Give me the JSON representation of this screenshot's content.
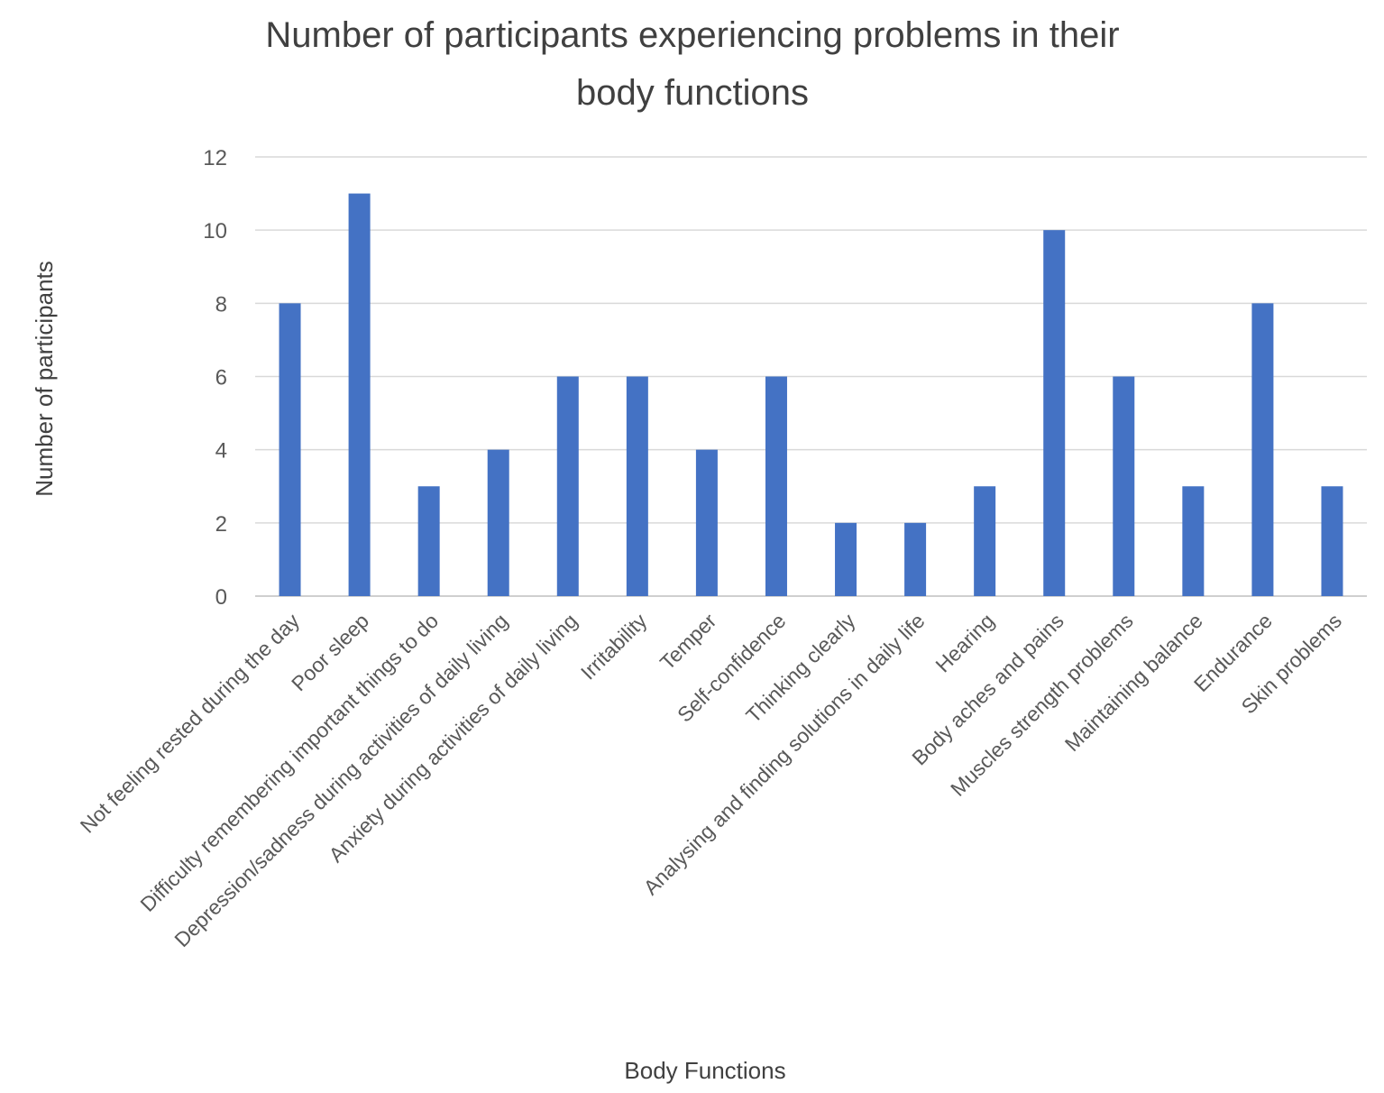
{
  "chart_data": {
    "type": "bar",
    "title": "Number of participants experiencing problems in their body functions",
    "title_lines": [
      "Number of participants experiencing problems in their",
      "body functions"
    ],
    "xlabel": "Body Functions",
    "ylabel": "Number of participants",
    "ylim": [
      0,
      12
    ],
    "yticks": [
      0,
      2,
      4,
      6,
      8,
      10,
      12
    ],
    "grid": true,
    "bar_color": "#4472C4",
    "categories": [
      "Not feeling rested during the day",
      "Poor sleep",
      "Difficulty remembering important things to do",
      "Depression/sadness during activities of daily living",
      "Anxiety during activities of daily living",
      "Irritability",
      "Temper",
      "Self-confidence",
      "Thinking clearly",
      "Analysing and finding solutions in daily life",
      "Hearing",
      "Body aches and pains",
      "Muscles strength problems",
      "Maintaining balance",
      "Endurance",
      "Skin problems"
    ],
    "values": [
      8,
      11,
      3,
      4,
      6,
      6,
      4,
      6,
      2,
      2,
      3,
      10,
      6,
      3,
      8,
      3
    ]
  }
}
